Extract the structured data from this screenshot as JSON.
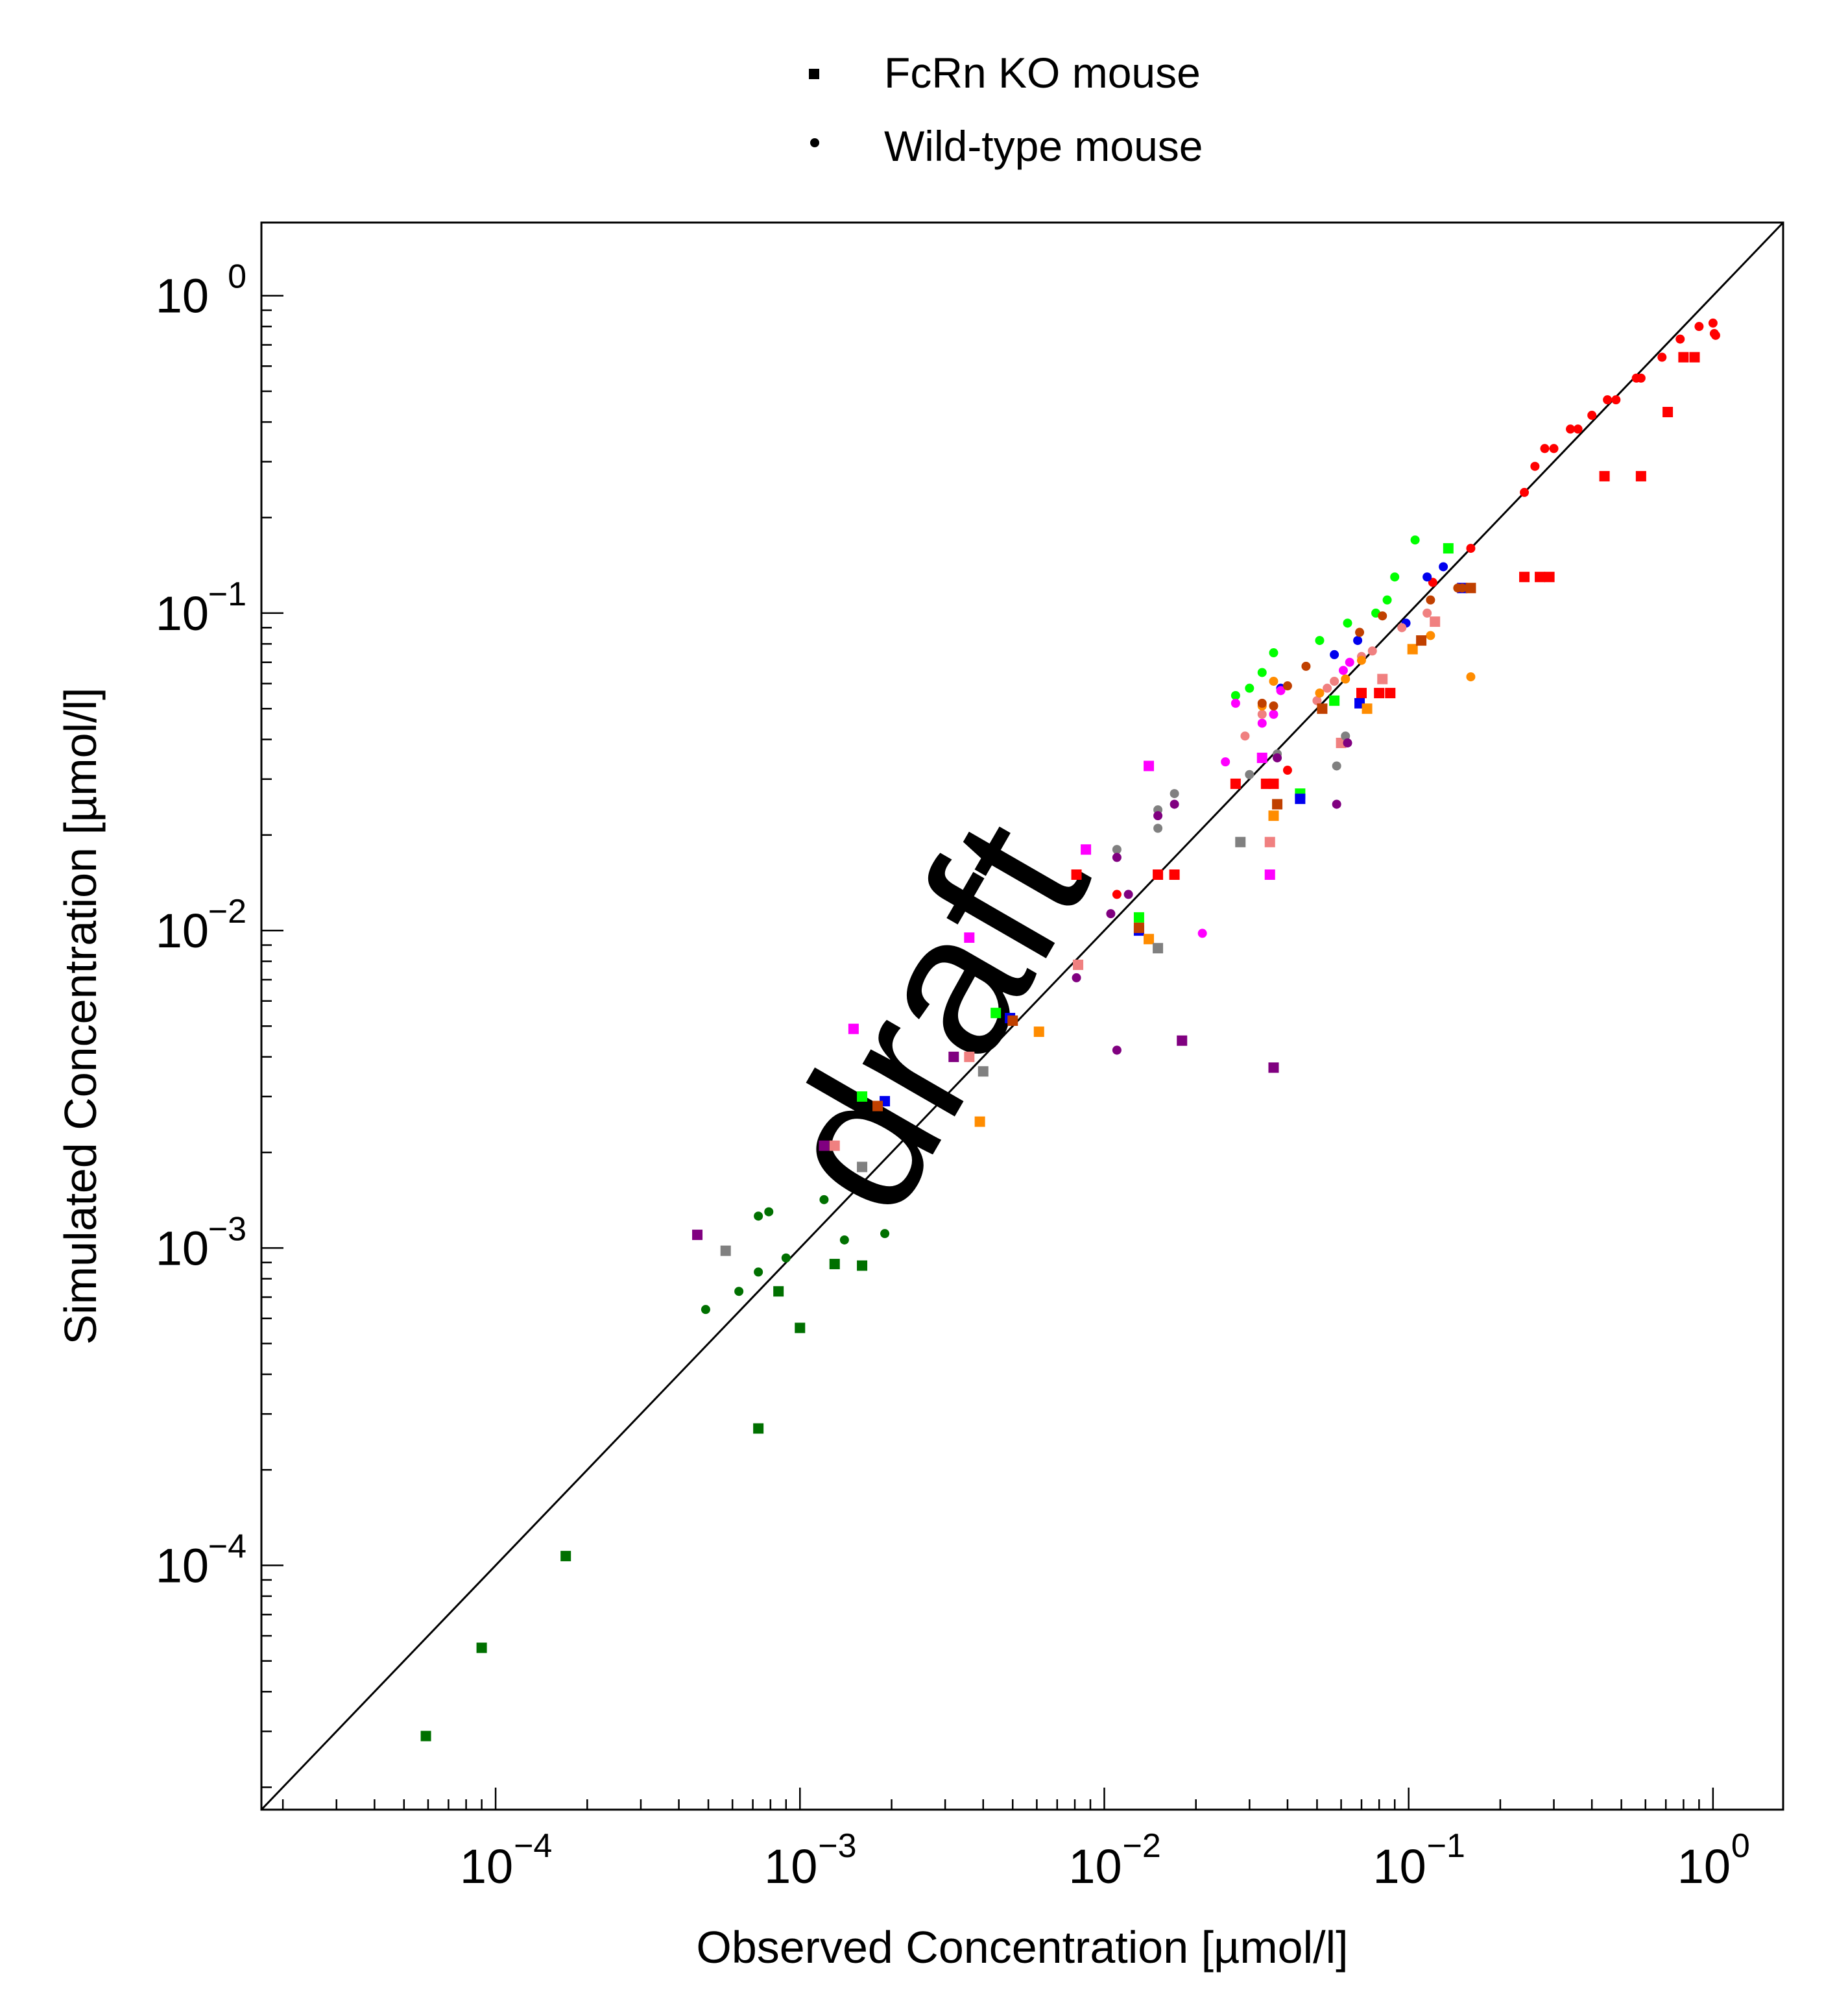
{
  "watermark": "draft",
  "colors": {
    "red": "#ff0000",
    "green": "#00ff00",
    "blue": "#0000ee",
    "magenta": "#ff00ff",
    "salmon": "#f08080",
    "orange": "#ff8c00",
    "brown": "#c04000",
    "gray": "#808080",
    "purple": "#800080",
    "darkgreen": "#007000",
    "identity_line": "#000000"
  },
  "chart_data": {
    "type": "scatter",
    "xlabel": "Observed Concentration [µmol/l]",
    "ylabel": "Simulated Concentration [µmol/l]",
    "xscale": "log",
    "yscale": "log",
    "xlim": [
      1.7e-05,
      1.7
    ],
    "ylim": [
      1.7e-05,
      1.7
    ],
    "x_ticks": [
      {
        "value": 0.0001,
        "label": "10",
        "exp": "−4"
      },
      {
        "value": 0.001,
        "label": "10",
        "exp": "−3"
      },
      {
        "value": 0.01,
        "label": "10",
        "exp": "−2"
      },
      {
        "value": 0.1,
        "label": "10",
        "exp": "−1"
      },
      {
        "value": 1,
        "label": "10",
        "exp": "0"
      }
    ],
    "y_ticks": [
      {
        "value": 0.0001,
        "label": "10",
        "exp": "−4"
      },
      {
        "value": 0.001,
        "label": "10",
        "exp": "−3"
      },
      {
        "value": 0.01,
        "label": "10",
        "exp": "−2"
      },
      {
        "value": 0.1,
        "label": "10",
        "exp": "−1"
      },
      {
        "value": 1,
        "label": "10",
        "exp": "0"
      }
    ],
    "grid": false,
    "legend_position": "top-center",
    "legend": [
      {
        "label": "FcRn KO mouse",
        "marker": "square"
      },
      {
        "label": "Wild-type mouse",
        "marker": "circle"
      }
    ],
    "identity_line": true,
    "series": [
      {
        "color": "red",
        "marker": "circle",
        "points": [
          [
            0.011,
            0.013
          ],
          [
            0.04,
            0.032
          ],
          [
            0.12,
            0.125
          ],
          [
            0.16,
            0.16
          ],
          [
            0.24,
            0.24
          ],
          [
            0.26,
            0.29
          ],
          [
            0.28,
            0.33
          ],
          [
            0.3,
            0.33
          ],
          [
            0.34,
            0.38
          ],
          [
            0.36,
            0.38
          ],
          [
            0.4,
            0.42
          ],
          [
            0.45,
            0.47
          ],
          [
            0.48,
            0.47
          ],
          [
            0.56,
            0.55
          ],
          [
            0.58,
            0.55
          ],
          [
            0.68,
            0.64
          ],
          [
            0.78,
            0.73
          ],
          [
            0.9,
            0.8
          ],
          [
            1.0,
            0.82
          ],
          [
            1.02,
            0.75
          ],
          [
            1.01,
            0.76
          ]
        ]
      },
      {
        "color": "red",
        "marker": "square",
        "points": [
          [
            0.0081,
            0.015
          ],
          [
            0.015,
            0.015
          ],
          [
            0.017,
            0.015
          ],
          [
            0.027,
            0.029
          ],
          [
            0.034,
            0.029
          ],
          [
            0.036,
            0.029
          ],
          [
            0.07,
            0.056
          ],
          [
            0.08,
            0.056
          ],
          [
            0.087,
            0.056
          ],
          [
            0.24,
            0.13
          ],
          [
            0.27,
            0.13
          ],
          [
            0.29,
            0.13
          ],
          [
            0.44,
            0.27
          ],
          [
            0.58,
            0.27
          ],
          [
            0.71,
            0.43
          ],
          [
            0.8,
            0.64
          ],
          [
            0.87,
            0.64
          ]
        ]
      },
      {
        "color": "green",
        "marker": "circle",
        "points": [
          [
            0.027,
            0.055
          ],
          [
            0.03,
            0.058
          ],
          [
            0.033,
            0.065
          ],
          [
            0.036,
            0.075
          ],
          [
            0.051,
            0.082
          ],
          [
            0.063,
            0.093
          ],
          [
            0.078,
            0.1
          ],
          [
            0.085,
            0.11
          ],
          [
            0.09,
            0.13
          ],
          [
            0.105,
            0.17
          ]
        ]
      },
      {
        "color": "green",
        "marker": "square",
        "points": [
          [
            0.0016,
            0.003
          ],
          [
            0.0044,
            0.0055
          ],
          [
            0.013,
            0.011
          ],
          [
            0.044,
            0.027
          ],
          [
            0.057,
            0.053
          ],
          [
            0.135,
            0.16
          ]
        ]
      },
      {
        "color": "blue",
        "marker": "circle",
        "points": [
          [
            0.038,
            0.058
          ],
          [
            0.057,
            0.074
          ],
          [
            0.068,
            0.082
          ],
          [
            0.098,
            0.093
          ],
          [
            0.115,
            0.13
          ],
          [
            0.13,
            0.14
          ]
        ]
      },
      {
        "color": "blue",
        "marker": "square",
        "points": [
          [
            0.0019,
            0.0029
          ],
          [
            0.0049,
            0.0053
          ],
          [
            0.013,
            0.01
          ],
          [
            0.044,
            0.026
          ],
          [
            0.069,
            0.052
          ],
          [
            0.15,
            0.12
          ]
        ]
      },
      {
        "color": "magenta",
        "marker": "circle",
        "points": [
          [
            0.021,
            0.0098
          ],
          [
            0.025,
            0.034
          ],
          [
            0.027,
            0.052
          ],
          [
            0.033,
            0.045
          ],
          [
            0.036,
            0.048
          ],
          [
            0.038,
            0.057
          ],
          [
            0.061,
            0.066
          ],
          [
            0.064,
            0.07
          ]
        ]
      },
      {
        "color": "magenta",
        "marker": "square",
        "points": [
          [
            0.0015,
            0.0049
          ],
          [
            0.0036,
            0.0095
          ],
          [
            0.0087,
            0.018
          ],
          [
            0.014,
            0.033
          ],
          [
            0.033,
            0.035
          ],
          [
            0.035,
            0.015
          ]
        ]
      },
      {
        "color": "salmon",
        "marker": "circle",
        "points": [
          [
            0.029,
            0.041
          ],
          [
            0.033,
            0.048
          ],
          [
            0.05,
            0.053
          ],
          [
            0.054,
            0.058
          ],
          [
            0.057,
            0.061
          ],
          [
            0.07,
            0.073
          ],
          [
            0.076,
            0.076
          ],
          [
            0.095,
            0.09
          ],
          [
            0.115,
            0.1
          ]
        ]
      },
      {
        "color": "salmon",
        "marker": "square",
        "points": [
          [
            0.0013,
            0.0021
          ],
          [
            0.0036,
            0.004
          ],
          [
            0.0082,
            0.0078
          ],
          [
            0.035,
            0.019
          ],
          [
            0.06,
            0.039
          ],
          [
            0.082,
            0.062
          ],
          [
            0.122,
            0.094
          ]
        ]
      },
      {
        "color": "orange",
        "marker": "circle",
        "points": [
          [
            0.033,
            0.051
          ],
          [
            0.036,
            0.061
          ],
          [
            0.051,
            0.056
          ],
          [
            0.062,
            0.062
          ],
          [
            0.07,
            0.071
          ],
          [
            0.118,
            0.085
          ],
          [
            0.16,
            0.063
          ]
        ]
      },
      {
        "color": "orange",
        "marker": "square",
        "points": [
          [
            0.0039,
            0.0025
          ],
          [
            0.0061,
            0.0048
          ],
          [
            0.014,
            0.0094
          ],
          [
            0.036,
            0.023
          ],
          [
            0.073,
            0.05
          ],
          [
            0.103,
            0.077
          ]
        ]
      },
      {
        "color": "brown",
        "marker": "circle",
        "points": [
          [
            0.033,
            0.052
          ],
          [
            0.036,
            0.051
          ],
          [
            0.04,
            0.059
          ],
          [
            0.046,
            0.068
          ],
          [
            0.069,
            0.087
          ],
          [
            0.082,
            0.098
          ],
          [
            0.118,
            0.11
          ],
          [
            0.145,
            0.12
          ],
          [
            0.15,
            0.12
          ]
        ]
      },
      {
        "color": "brown",
        "marker": "square",
        "points": [
          [
            0.0018,
            0.0028
          ],
          [
            0.005,
            0.0052
          ],
          [
            0.013,
            0.0102
          ],
          [
            0.037,
            0.025
          ],
          [
            0.052,
            0.05
          ],
          [
            0.11,
            0.082
          ],
          [
            0.16,
            0.12
          ]
        ]
      },
      {
        "color": "gray",
        "marker": "circle",
        "points": [
          [
            0.011,
            0.018
          ],
          [
            0.015,
            0.024
          ],
          [
            0.015,
            0.021
          ],
          [
            0.017,
            0.027
          ],
          [
            0.03,
            0.031
          ],
          [
            0.037,
            0.036
          ],
          [
            0.058,
            0.033
          ],
          [
            0.062,
            0.041
          ]
        ]
      },
      {
        "color": "gray",
        "marker": "square",
        "points": [
          [
            0.00057,
            0.00098
          ],
          [
            0.0016,
            0.0018
          ],
          [
            0.004,
            0.0036
          ],
          [
            0.015,
            0.0088
          ],
          [
            0.028,
            0.019
          ]
        ]
      },
      {
        "color": "purple",
        "marker": "circle",
        "points": [
          [
            0.0081,
            0.0071
          ],
          [
            0.0105,
            0.0113
          ],
          [
            0.011,
            0.0042
          ],
          [
            0.011,
            0.017
          ],
          [
            0.012,
            0.013
          ],
          [
            0.015,
            0.023
          ],
          [
            0.017,
            0.025
          ],
          [
            0.037,
            0.035
          ],
          [
            0.058,
            0.025
          ],
          [
            0.063,
            0.039
          ]
        ]
      },
      {
        "color": "purple",
        "marker": "square",
        "points": [
          [
            0.00046,
            0.0011
          ],
          [
            0.0012,
            0.0021
          ],
          [
            0.0032,
            0.004
          ],
          [
            0.018,
            0.0045
          ],
          [
            0.036,
            0.0037
          ]
        ]
      },
      {
        "color": "darkgreen",
        "marker": "circle",
        "points": [
          [
            0.00049,
            0.00064
          ],
          [
            0.00063,
            0.00073
          ],
          [
            0.00073,
            0.00126
          ],
          [
            0.00073,
            0.00084
          ],
          [
            0.00079,
            0.0013
          ],
          [
            0.0009,
            0.00093
          ],
          [
            0.0012,
            0.00142
          ],
          [
            0.0014,
            0.00106
          ],
          [
            0.0019,
            0.00111
          ]
        ]
      },
      {
        "color": "darkgreen",
        "marker": "square",
        "points": [
          [
            5.9e-05,
            2.9e-05
          ],
          [
            9e-05,
            5.5e-05
          ],
          [
            0.00017,
            0.000107
          ],
          [
            0.00073,
            0.00027
          ],
          [
            0.00085,
            0.00073
          ],
          [
            0.001,
            0.00056
          ],
          [
            0.0013,
            0.00089
          ],
          [
            0.0016,
            0.00088
          ]
        ]
      }
    ]
  }
}
